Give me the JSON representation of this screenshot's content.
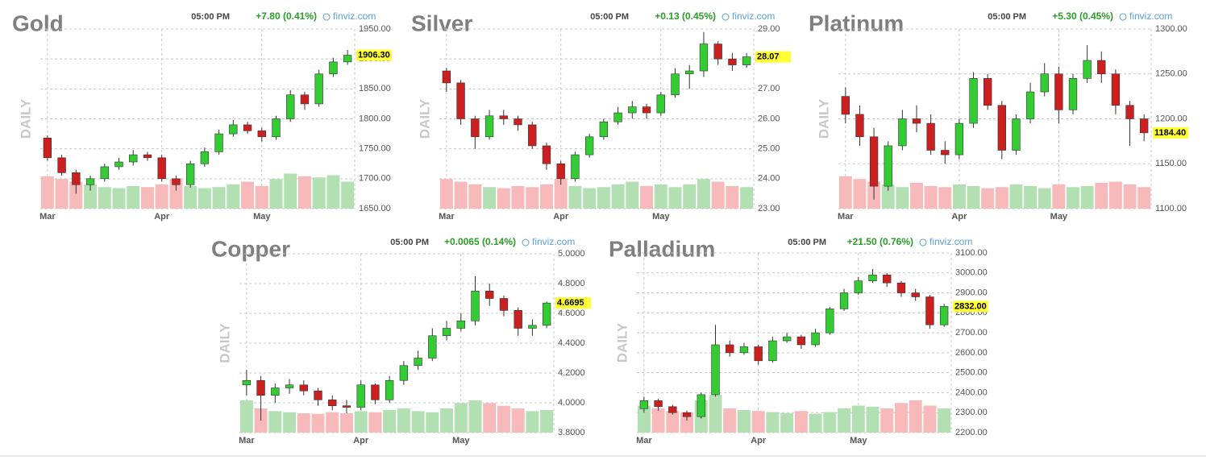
{
  "chart_data": [
    {
      "type": "candlestick",
      "title": "Gold",
      "timeframe": "DAILY",
      "time": "05:00 PM",
      "change": "+7.80 (0.41%)",
      "source": "finviz.com",
      "categories": [
        "Mar",
        null,
        null,
        null,
        null,
        null,
        null,
        null,
        "Apr",
        null,
        null,
        null,
        null,
        null,
        null,
        "May",
        null,
        null,
        null,
        null,
        null,
        null
      ],
      "open": [
        1768,
        1735,
        1710,
        1690,
        1700,
        1720,
        1728,
        1740,
        1735,
        1700,
        1690,
        1725,
        1745,
        1775,
        1790,
        1780,
        1770,
        1800,
        1840,
        1825,
        1875,
        1895
      ],
      "high": [
        1772,
        1740,
        1715,
        1705,
        1725,
        1735,
        1748,
        1745,
        1740,
        1705,
        1730,
        1752,
        1782,
        1798,
        1795,
        1785,
        1805,
        1848,
        1845,
        1882,
        1902,
        1915
      ],
      "low": [
        1730,
        1705,
        1675,
        1680,
        1695,
        1715,
        1722,
        1730,
        1695,
        1680,
        1685,
        1720,
        1740,
        1770,
        1775,
        1762,
        1765,
        1795,
        1815,
        1820,
        1870,
        1890
      ],
      "close": [
        1735,
        1710,
        1690,
        1700,
        1720,
        1728,
        1740,
        1735,
        1700,
        1690,
        1725,
        1745,
        1775,
        1790,
        1780,
        1770,
        1800,
        1840,
        1825,
        1875,
        1895,
        1906.3
      ],
      "volume": [
        60,
        55,
        50,
        45,
        40,
        38,
        42,
        40,
        45,
        55,
        42,
        38,
        40,
        45,
        50,
        42,
        55,
        65,
        60,
        58,
        62,
        50
      ],
      "ylim": [
        1650,
        1950
      ],
      "yticks": [
        {
          "value": 1650,
          "label": "1650.00"
        },
        {
          "value": 1700,
          "label": "1700.00"
        },
        {
          "value": 1750,
          "label": "1750.00"
        },
        {
          "value": 1800,
          "label": "1800.00"
        },
        {
          "value": 1850,
          "label": "1850.00"
        },
        {
          "value": 1900,
          "label": "1900.00"
        },
        {
          "value": 1950,
          "label": "1950.00"
        }
      ],
      "last": {
        "value": 1906.3,
        "label": "1906.30"
      },
      "up_color": "#33cc33",
      "down_color": "#cc1f1f",
      "volume_up_color": "#b3e0b3",
      "volume_down_color": "#f7b9b9",
      "tag_color": "#ffff33",
      "grid": true
    },
    {
      "type": "candlestick",
      "title": "Silver",
      "timeframe": "DAILY",
      "time": "05:00 PM",
      "change": "+0.13 (0.45%)",
      "source": "finviz.com",
      "categories": [
        "Mar",
        null,
        null,
        null,
        null,
        null,
        null,
        null,
        "Apr",
        null,
        null,
        null,
        null,
        null,
        null,
        "May",
        null,
        null,
        null,
        null,
        null,
        null
      ],
      "open": [
        27.6,
        27.2,
        26.0,
        25.4,
        26.1,
        26.0,
        25.8,
        25.1,
        24.5,
        24.0,
        24.8,
        25.4,
        25.9,
        26.2,
        26.4,
        26.2,
        26.8,
        27.5,
        27.6,
        28.5,
        28.0,
        27.8
      ],
      "high": [
        27.7,
        27.3,
        26.1,
        26.3,
        26.3,
        26.1,
        25.9,
        25.2,
        24.6,
        24.9,
        25.5,
        26.0,
        26.4,
        26.6,
        26.5,
        26.9,
        27.7,
        27.8,
        28.9,
        28.6,
        28.2,
        28.2
      ],
      "low": [
        26.9,
        25.8,
        25.0,
        25.3,
        25.8,
        25.6,
        25.0,
        24.3,
        23.8,
        23.9,
        24.7,
        25.3,
        25.8,
        26.0,
        26.0,
        26.1,
        26.7,
        27.0,
        27.4,
        27.8,
        27.6,
        27.7
      ],
      "close": [
        27.2,
        26.0,
        25.4,
        26.1,
        26.0,
        25.8,
        25.1,
        24.5,
        24.0,
        24.8,
        25.4,
        25.9,
        26.2,
        26.4,
        26.2,
        26.8,
        27.5,
        27.6,
        28.5,
        28.0,
        27.8,
        28.07
      ],
      "volume": [
        55,
        50,
        45,
        40,
        38,
        42,
        40,
        45,
        55,
        42,
        38,
        40,
        45,
        50,
        42,
        45,
        40,
        45,
        55,
        50,
        42,
        40
      ],
      "ylim": [
        23,
        29
      ],
      "yticks": [
        {
          "value": 23,
          "label": "23.00"
        },
        {
          "value": 24,
          "label": "24.00"
        },
        {
          "value": 25,
          "label": "25.00"
        },
        {
          "value": 26,
          "label": "26.00"
        },
        {
          "value": 27,
          "label": "27.00"
        },
        {
          "value": 28,
          "label": "28.00"
        },
        {
          "value": 29,
          "label": "29.00"
        }
      ],
      "last": {
        "value": 28.07,
        "label": "28.07"
      },
      "up_color": "#33cc33",
      "down_color": "#cc1f1f",
      "volume_up_color": "#b3e0b3",
      "volume_down_color": "#f7b9b9",
      "tag_color": "#ffff33",
      "grid": true
    },
    {
      "type": "candlestick",
      "title": "Platinum",
      "timeframe": "DAILY",
      "time": "05:00 PM",
      "change": "+5.30 (0.45%)",
      "source": "finviz.com",
      "categories": [
        "Mar",
        null,
        null,
        null,
        null,
        null,
        null,
        null,
        "Apr",
        null,
        null,
        null,
        null,
        null,
        null,
        "May",
        null,
        null,
        null,
        null,
        null,
        null
      ],
      "open": [
        1225,
        1205,
        1180,
        1125,
        1170,
        1200,
        1195,
        1165,
        1160,
        1195,
        1245,
        1215,
        1165,
        1200,
        1230,
        1250,
        1210,
        1245,
        1265,
        1250,
        1215,
        1200
      ],
      "high": [
        1235,
        1215,
        1190,
        1175,
        1210,
        1215,
        1205,
        1175,
        1200,
        1252,
        1250,
        1220,
        1205,
        1240,
        1262,
        1258,
        1250,
        1282,
        1275,
        1255,
        1220,
        1205
      ],
      "low": [
        1195,
        1170,
        1110,
        1120,
        1165,
        1185,
        1160,
        1150,
        1155,
        1190,
        1210,
        1155,
        1160,
        1195,
        1225,
        1195,
        1205,
        1240,
        1240,
        1205,
        1170,
        1175
      ],
      "close": [
        1205,
        1180,
        1125,
        1170,
        1200,
        1195,
        1165,
        1160,
        1195,
        1245,
        1215,
        1165,
        1200,
        1230,
        1250,
        1210,
        1245,
        1265,
        1250,
        1215,
        1200,
        1184.4
      ],
      "volume": [
        60,
        55,
        50,
        45,
        40,
        48,
        42,
        40,
        45,
        42,
        38,
        40,
        45,
        42,
        38,
        45,
        40,
        42,
        48,
        50,
        45,
        40
      ],
      "ylim": [
        1100,
        1300
      ],
      "yticks": [
        {
          "value": 1100,
          "label": "1100.00"
        },
        {
          "value": 1150,
          "label": "1150.00"
        },
        {
          "value": 1200,
          "label": "1200.00"
        },
        {
          "value": 1250,
          "label": "1250.00"
        },
        {
          "value": 1300,
          "label": "1300.00"
        }
      ],
      "last": {
        "value": 1184.4,
        "label": "1184.40"
      },
      "up_color": "#33cc33",
      "down_color": "#cc1f1f",
      "volume_up_color": "#b3e0b3",
      "volume_down_color": "#f7b9b9",
      "tag_color": "#ffff33",
      "grid": true
    },
    {
      "type": "candlestick",
      "title": "Copper",
      "timeframe": "DAILY",
      "time": "05:00 PM",
      "change": "+0.0065 (0.14%)",
      "source": "finviz.com",
      "categories": [
        "Mar",
        null,
        null,
        null,
        null,
        null,
        null,
        null,
        "Apr",
        null,
        null,
        null,
        null,
        null,
        null,
        "May",
        null,
        null,
        null,
        null,
        null,
        null
      ],
      "open": [
        4.12,
        4.15,
        4.05,
        4.1,
        4.12,
        4.08,
        4.02,
        3.98,
        3.97,
        4.12,
        4.02,
        4.15,
        4.25,
        4.3,
        4.45,
        4.5,
        4.55,
        4.75,
        4.7,
        4.62,
        4.5,
        4.52
      ],
      "high": [
        4.22,
        4.18,
        4.13,
        4.16,
        4.15,
        4.1,
        4.05,
        4.02,
        4.15,
        4.13,
        4.18,
        4.28,
        4.35,
        4.5,
        4.55,
        4.6,
        4.85,
        4.8,
        4.72,
        4.64,
        4.56,
        4.68
      ],
      "low": [
        4.05,
        3.88,
        4.0,
        4.06,
        4.05,
        3.98,
        3.95,
        3.93,
        3.95,
        3.99,
        4.0,
        4.12,
        4.22,
        4.28,
        4.42,
        4.48,
        4.52,
        4.65,
        4.58,
        4.45,
        4.45,
        4.5
      ],
      "close": [
        4.15,
        4.05,
        4.1,
        4.12,
        4.08,
        4.02,
        3.98,
        3.97,
        4.12,
        4.02,
        4.15,
        4.25,
        4.3,
        4.45,
        4.5,
        4.55,
        4.75,
        4.7,
        4.62,
        4.5,
        4.52,
        4.6695
      ],
      "volume": [
        60,
        45,
        40,
        38,
        36,
        35,
        38,
        36,
        40,
        38,
        42,
        45,
        40,
        38,
        45,
        55,
        60,
        55,
        50,
        45,
        40,
        42
      ],
      "ylim": [
        3.8,
        5.0
      ],
      "yticks": [
        {
          "value": 3.8,
          "label": "3.8000"
        },
        {
          "value": 4.0,
          "label": "4.0000"
        },
        {
          "value": 4.2,
          "label": "4.2000"
        },
        {
          "value": 4.4,
          "label": "4.4000"
        },
        {
          "value": 4.6,
          "label": "4.6000"
        },
        {
          "value": 4.8,
          "label": "4.8000"
        },
        {
          "value": 5.0,
          "label": "5.0000"
        }
      ],
      "last": {
        "value": 4.6695,
        "label": "4.6695"
      },
      "up_color": "#33cc33",
      "down_color": "#cc1f1f",
      "volume_up_color": "#b3e0b3",
      "volume_down_color": "#f7b9b9",
      "tag_color": "#ffff33",
      "grid": true
    },
    {
      "type": "candlestick",
      "title": "Palladium",
      "timeframe": "DAILY",
      "time": "05:00 PM",
      "change": "+21.50 (0.76%)",
      "source": "finviz.com",
      "categories": [
        "Mar",
        null,
        null,
        null,
        null,
        null,
        null,
        null,
        "Apr",
        null,
        null,
        null,
        null,
        null,
        null,
        "May",
        null,
        null,
        null,
        null,
        null,
        null
      ],
      "open": [
        2320,
        2360,
        2330,
        2300,
        2280,
        2390,
        2640,
        2600,
        2630,
        2560,
        2660,
        2680,
        2640,
        2700,
        2820,
        2900,
        2960,
        2990,
        2950,
        2900,
        2880,
        2740
      ],
      "high": [
        2380,
        2370,
        2340,
        2310,
        2400,
        2740,
        2660,
        2650,
        2640,
        2680,
        2700,
        2690,
        2720,
        2830,
        2920,
        2980,
        3020,
        3000,
        2960,
        2920,
        2890,
        2845
      ],
      "low": [
        2300,
        2310,
        2290,
        2260,
        2270,
        2380,
        2580,
        2590,
        2540,
        2550,
        2650,
        2620,
        2630,
        2690,
        2810,
        2890,
        2950,
        2930,
        2880,
        2860,
        2720,
        2730
      ],
      "close": [
        2360,
        2330,
        2300,
        2280,
        2390,
        2640,
        2600,
        2630,
        2560,
        2660,
        2680,
        2640,
        2700,
        2820,
        2900,
        2960,
        2990,
        2950,
        2900,
        2880,
        2740,
        2832
      ],
      "volume": [
        50,
        45,
        40,
        38,
        60,
        70,
        45,
        42,
        40,
        38,
        36,
        40,
        35,
        38,
        45,
        50,
        48,
        45,
        55,
        60,
        50,
        45
      ],
      "ylim": [
        2200,
        3100
      ],
      "yticks": [
        {
          "value": 2200,
          "label": "2200.00"
        },
        {
          "value": 2300,
          "label": "2300.00"
        },
        {
          "value": 2400,
          "label": "2400.00"
        },
        {
          "value": 2500,
          "label": "2500.00"
        },
        {
          "value": 2600,
          "label": "2600.00"
        },
        {
          "value": 2700,
          "label": "2700.00"
        },
        {
          "value": 2800,
          "label": "2800.00"
        },
        {
          "value": 2900,
          "label": "2900.00"
        },
        {
          "value": 3000,
          "label": "3000.00"
        },
        {
          "value": 3100,
          "label": "3100.00"
        }
      ],
      "last": {
        "value": 2832,
        "label": "2832.00"
      },
      "up_color": "#33cc33",
      "down_color": "#cc1f1f",
      "volume_up_color": "#b3e0b3",
      "volume_down_color": "#f7b9b9",
      "tag_color": "#ffff33",
      "grid": true
    }
  ]
}
